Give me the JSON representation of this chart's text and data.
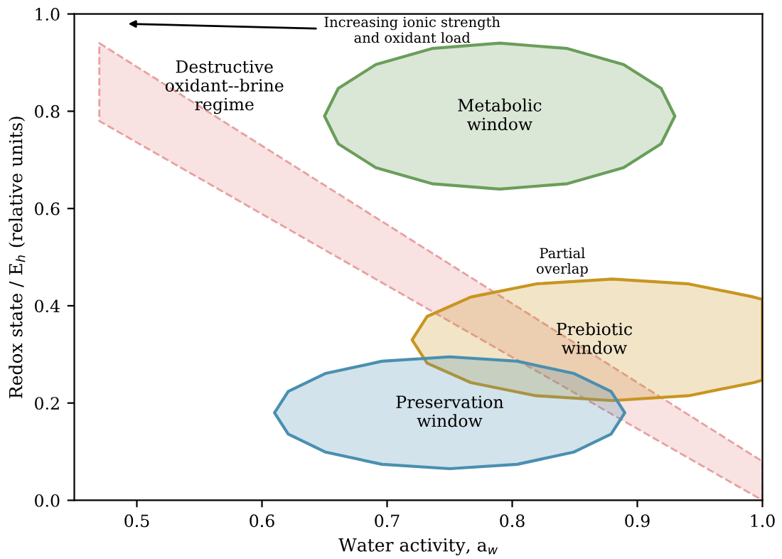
{
  "chart_data": {
    "type": "area",
    "xlabel": "Water activity, a$_{w}$",
    "ylabel": "Redox state / E$_{h}$ (relative units)",
    "xlim": [
      0.45,
      1.0
    ],
    "ylim": [
      0,
      1.0
    ],
    "xticks": [
      0.5,
      0.6,
      0.7,
      0.8,
      0.9,
      {
        "value": 1.0,
        "label": "1.0"
      }
    ],
    "yticks": [
      {
        "value": 0,
        "label": "0.0"
      },
      0.2,
      0.4,
      0.6,
      0.8,
      {
        "value": 1,
        "label": "1.0"
      }
    ],
    "series": [
      {
        "color": "#e8a0a0",
        "line_style": "dashed",
        "x": [
          0.47,
          1.0,
          1.0,
          0.47
        ],
        "values": [
          0.94,
          0.08,
          0.0,
          0.78
        ]
      },
      {
        "name": "Metabolic\nwindow",
        "color": "#6a9e5a",
        "x": [
          0.93,
          0.919,
          0.889,
          0.844,
          0.79,
          0.736,
          0.691,
          0.661,
          0.65,
          0.661,
          0.691,
          0.736,
          0.79,
          0.844,
          0.889,
          0.919
        ],
        "values": [
          0.79,
          0.847,
          0.896,
          0.929,
          0.94,
          0.929,
          0.896,
          0.847,
          0.79,
          0.733,
          0.684,
          0.651,
          0.64,
          0.651,
          0.684,
          0.733
        ]
      },
      {
        "name": "Prebiotic\nwindow",
        "color": "#c8951f",
        "x": [
          1.0,
          0.993,
          0.941,
          0.88,
          0.819,
          0.767,
          0.732,
          0.72,
          0.732,
          0.767,
          0.819,
          0.88,
          0.941,
          0.993,
          1.0
        ],
        "values": [
          0.413,
          0.418,
          0.445,
          0.455,
          0.445,
          0.418,
          0.378,
          0.33,
          0.282,
          0.242,
          0.215,
          0.205,
          0.215,
          0.242,
          0.247
        ]
      },
      {
        "name": "Preservation\nwindow",
        "color": "#4a8fb0",
        "x": [
          0.89,
          0.879,
          0.849,
          0.804,
          0.75,
          0.696,
          0.651,
          0.621,
          0.61,
          0.621,
          0.651,
          0.696,
          0.75,
          0.804,
          0.849,
          0.879
        ],
        "values": [
          0.18,
          0.224,
          0.261,
          0.286,
          0.295,
          0.286,
          0.261,
          0.224,
          0.18,
          0.136,
          0.099,
          0.074,
          0.065,
          0.074,
          0.099,
          0.136
        ]
      }
    ],
    "annotations": [
      "Increasing ionic strength\nand oxidant load",
      "Destructive\noxidant--brine\nregime",
      "Partial\noverlap"
    ]
  }
}
